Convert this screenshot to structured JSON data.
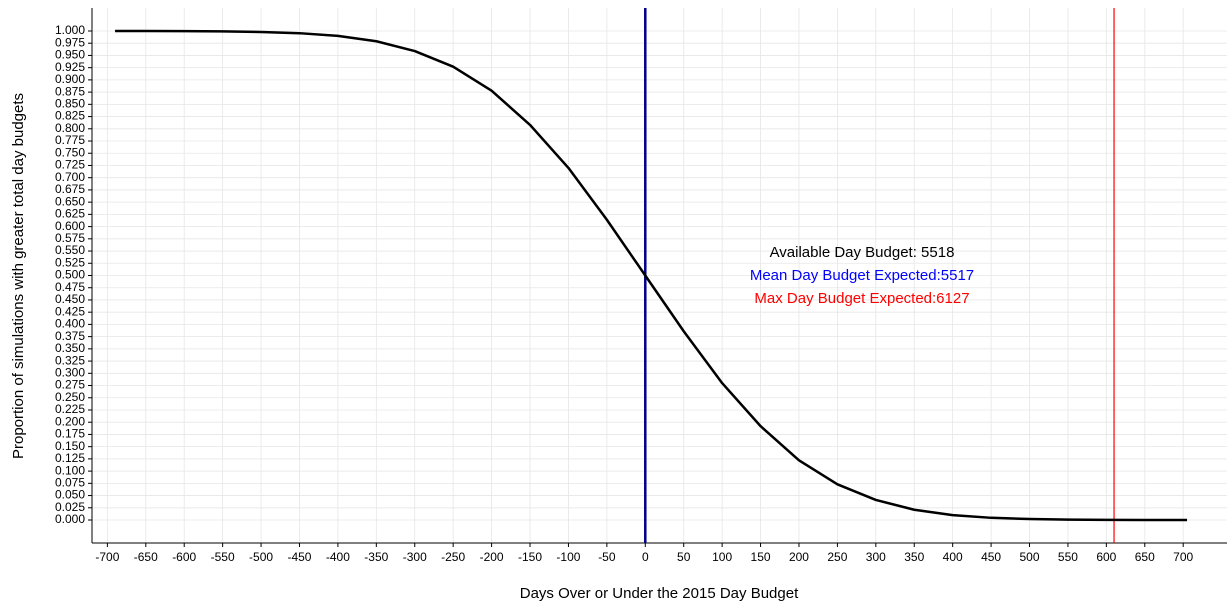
{
  "chart_data": {
    "type": "line",
    "x_label": "Days Over or Under the 2015 Day Budget",
    "y_label": "Proportion of simulations with greater total day budgets",
    "x": [
      -690,
      -650,
      -600,
      -550,
      -500,
      -450,
      -400,
      -350,
      -300,
      -250,
      -200,
      -150,
      -100,
      -50,
      0,
      50,
      100,
      150,
      200,
      250,
      300,
      350,
      400,
      450,
      500,
      550,
      600,
      650,
      705
    ],
    "series": [
      {
        "color": "#000000",
        "values": [
          1.0,
          1.0,
          0.9998,
          0.9993,
          0.998,
          0.9955,
          0.99,
          0.979,
          0.959,
          0.927,
          0.878,
          0.808,
          0.72,
          0.614,
          0.5,
          0.386,
          0.28,
          0.192,
          0.122,
          0.073,
          0.041,
          0.021,
          0.01,
          0.0045,
          0.002,
          0.0007,
          0.0002,
          0.0001,
          0.0
        ]
      }
    ],
    "vlines": [
      {
        "x": 0,
        "color": "#00008b"
      },
      {
        "x": 610,
        "color": "#ff0000"
      }
    ],
    "annotations": [
      {
        "text": "Available Day Budget: 5518",
        "color": "#000000"
      },
      {
        "text": "Mean Day Budget Expected:5517",
        "color": "#0000ff"
      },
      {
        "text": "Max Day Budget Expected:6127",
        "color": "#ff0000"
      }
    ],
    "xlim": [
      -720,
      757
    ],
    "ylim": [
      -0.047,
      1.047
    ],
    "xticks": [
      -700,
      -650,
      -600,
      -550,
      -500,
      -450,
      -400,
      -350,
      -300,
      -250,
      -200,
      -150,
      -100,
      -50,
      0,
      50,
      100,
      150,
      200,
      250,
      300,
      350,
      400,
      450,
      500,
      550,
      600,
      650,
      700
    ],
    "yticks": [
      {
        "value": 0,
        "label": "0.000"
      },
      {
        "value": 0.025,
        "label": "0.025"
      },
      {
        "value": 0.05,
        "label": "0.050"
      },
      {
        "value": 0.075,
        "label": "0.075"
      },
      {
        "value": 0.1,
        "label": "0.100"
      },
      {
        "value": 0.125,
        "label": "0.125"
      },
      {
        "value": 0.15,
        "label": "0.150"
      },
      {
        "value": 0.175,
        "label": "0.175"
      },
      {
        "value": 0.2,
        "label": "0.200"
      },
      {
        "value": 0.225,
        "label": "0.225"
      },
      {
        "value": 0.25,
        "label": "0.250"
      },
      {
        "value": 0.275,
        "label": "0.275"
      },
      {
        "value": 0.3,
        "label": "0.300"
      },
      {
        "value": 0.325,
        "label": "0.325"
      },
      {
        "value": 0.35,
        "label": "0.350"
      },
      {
        "value": 0.375,
        "label": "0.375"
      },
      {
        "value": 0.4,
        "label": "0.400"
      },
      {
        "value": 0.425,
        "label": "0.425"
      },
      {
        "value": 0.45,
        "label": "0.450"
      },
      {
        "value": 0.475,
        "label": "0.475"
      },
      {
        "value": 0.5,
        "label": "0.500"
      },
      {
        "value": 0.525,
        "label": "0.525"
      },
      {
        "value": 0.55,
        "label": "0.550"
      },
      {
        "value": 0.575,
        "label": "0.575"
      },
      {
        "value": 0.6,
        "label": "0.600"
      },
      {
        "value": 0.625,
        "label": "0.625"
      },
      {
        "value": 0.65,
        "label": "0.650"
      },
      {
        "value": 0.675,
        "label": "0.675"
      },
      {
        "value": 0.7,
        "label": "0.700"
      },
      {
        "value": 0.725,
        "label": "0.725"
      },
      {
        "value": 0.75,
        "label": "0.750"
      },
      {
        "value": 0.775,
        "label": "0.775"
      },
      {
        "value": 0.8,
        "label": "0.800"
      },
      {
        "value": 0.825,
        "label": "0.825"
      },
      {
        "value": 0.85,
        "label": "0.850"
      },
      {
        "value": 0.875,
        "label": "0.875"
      },
      {
        "value": 0.9,
        "label": "0.900"
      },
      {
        "value": 0.925,
        "label": "0.925"
      },
      {
        "value": 0.95,
        "label": "0.950"
      },
      {
        "value": 0.975,
        "label": "0.975"
      },
      {
        "value": 1,
        "label": "1.000"
      }
    ],
    "grid": true
  }
}
